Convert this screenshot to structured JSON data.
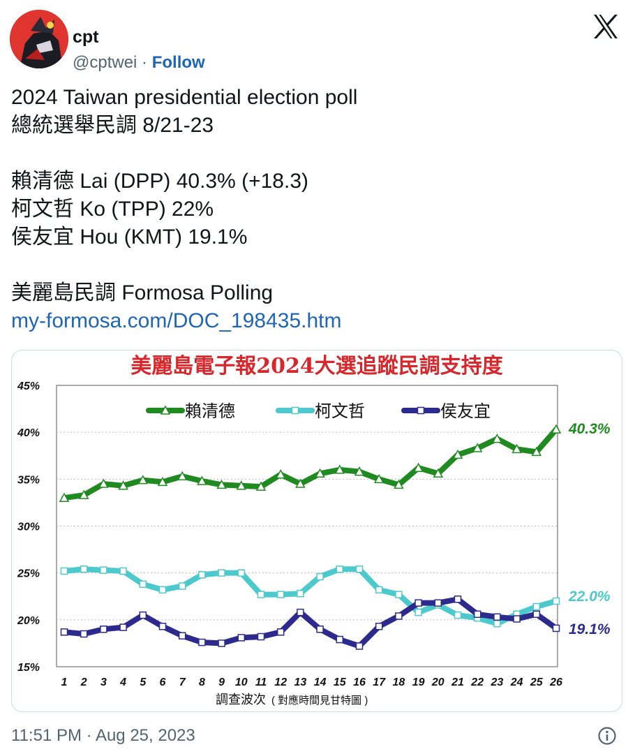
{
  "tweet": {
    "author_name": "cpt",
    "handle": "@cptwei",
    "separator": " · ",
    "follow_label": "Follow",
    "text_lines": [
      "2024 Taiwan presidential election poll",
      "總統選舉民調 8/21-23",
      "",
      "賴清德 Lai (DPP) 40.3% (+18.3)",
      "柯文哲 Ko (TPP) 22%",
      "侯友宜 Hou (KMT) 19.1%",
      "",
      "美麗島民調 Formosa Polling"
    ],
    "link_text": "my-formosa.com/DOC_198435.htm",
    "timestamp": "11:51 PM · Aug 25, 2023",
    "icons": {
      "logo": "x-logo-icon",
      "info": "info-icon"
    }
  },
  "colors": {
    "link": "#1d65b7",
    "lai": "#1f8a1f",
    "ko": "#4cc9cc",
    "hou": "#2c2a8c",
    "chart_title": "#d8262a"
  },
  "chart_data": {
    "type": "line",
    "title": "美麗島電子報2024大選追蹤民調支持度",
    "xlabel": "調查波次",
    "xlabel_note": "( 對應時間見甘特圖 )",
    "x": [
      1,
      2,
      3,
      4,
      5,
      6,
      7,
      8,
      9,
      10,
      11,
      12,
      13,
      14,
      15,
      16,
      17,
      18,
      19,
      20,
      21,
      22,
      23,
      24,
      25,
      26
    ],
    "y_ticks": [
      "15%",
      "20%",
      "25%",
      "30%",
      "35%",
      "40%",
      "45%"
    ],
    "ylim": [
      15,
      45
    ],
    "grid": true,
    "legend_position": "top",
    "series": [
      {
        "name": "賴清德",
        "color": "#1f8a1f",
        "marker": "triangle",
        "end_label": "40.3%",
        "values": [
          33.0,
          33.3,
          34.5,
          34.3,
          34.9,
          34.7,
          35.3,
          34.8,
          34.4,
          34.3,
          34.2,
          35.5,
          34.5,
          35.6,
          36.0,
          35.8,
          35.0,
          34.4,
          36.2,
          35.6,
          37.6,
          38.3,
          39.3,
          38.2,
          37.9,
          40.3
        ]
      },
      {
        "name": "柯文哲",
        "color": "#4cc9cc",
        "marker": "square",
        "end_label": "22.0%",
        "values": [
          25.2,
          25.4,
          25.3,
          25.2,
          23.8,
          23.2,
          23.6,
          24.8,
          25.0,
          25.0,
          22.7,
          22.7,
          22.8,
          24.6,
          25.4,
          25.4,
          23.2,
          22.7,
          20.8,
          21.6,
          20.5,
          20.2,
          19.6,
          20.6,
          21.4,
          22.0
        ]
      },
      {
        "name": "侯友宜",
        "color": "#2c2a8c",
        "marker": "square",
        "end_label": "19.1%",
        "values": [
          18.7,
          18.5,
          19.0,
          19.2,
          20.5,
          19.3,
          18.3,
          17.6,
          17.5,
          18.1,
          18.2,
          18.7,
          20.8,
          19.0,
          17.9,
          17.2,
          19.3,
          20.4,
          21.8,
          21.8,
          22.2,
          20.6,
          20.3,
          20.1,
          20.6,
          19.1
        ]
      }
    ]
  }
}
